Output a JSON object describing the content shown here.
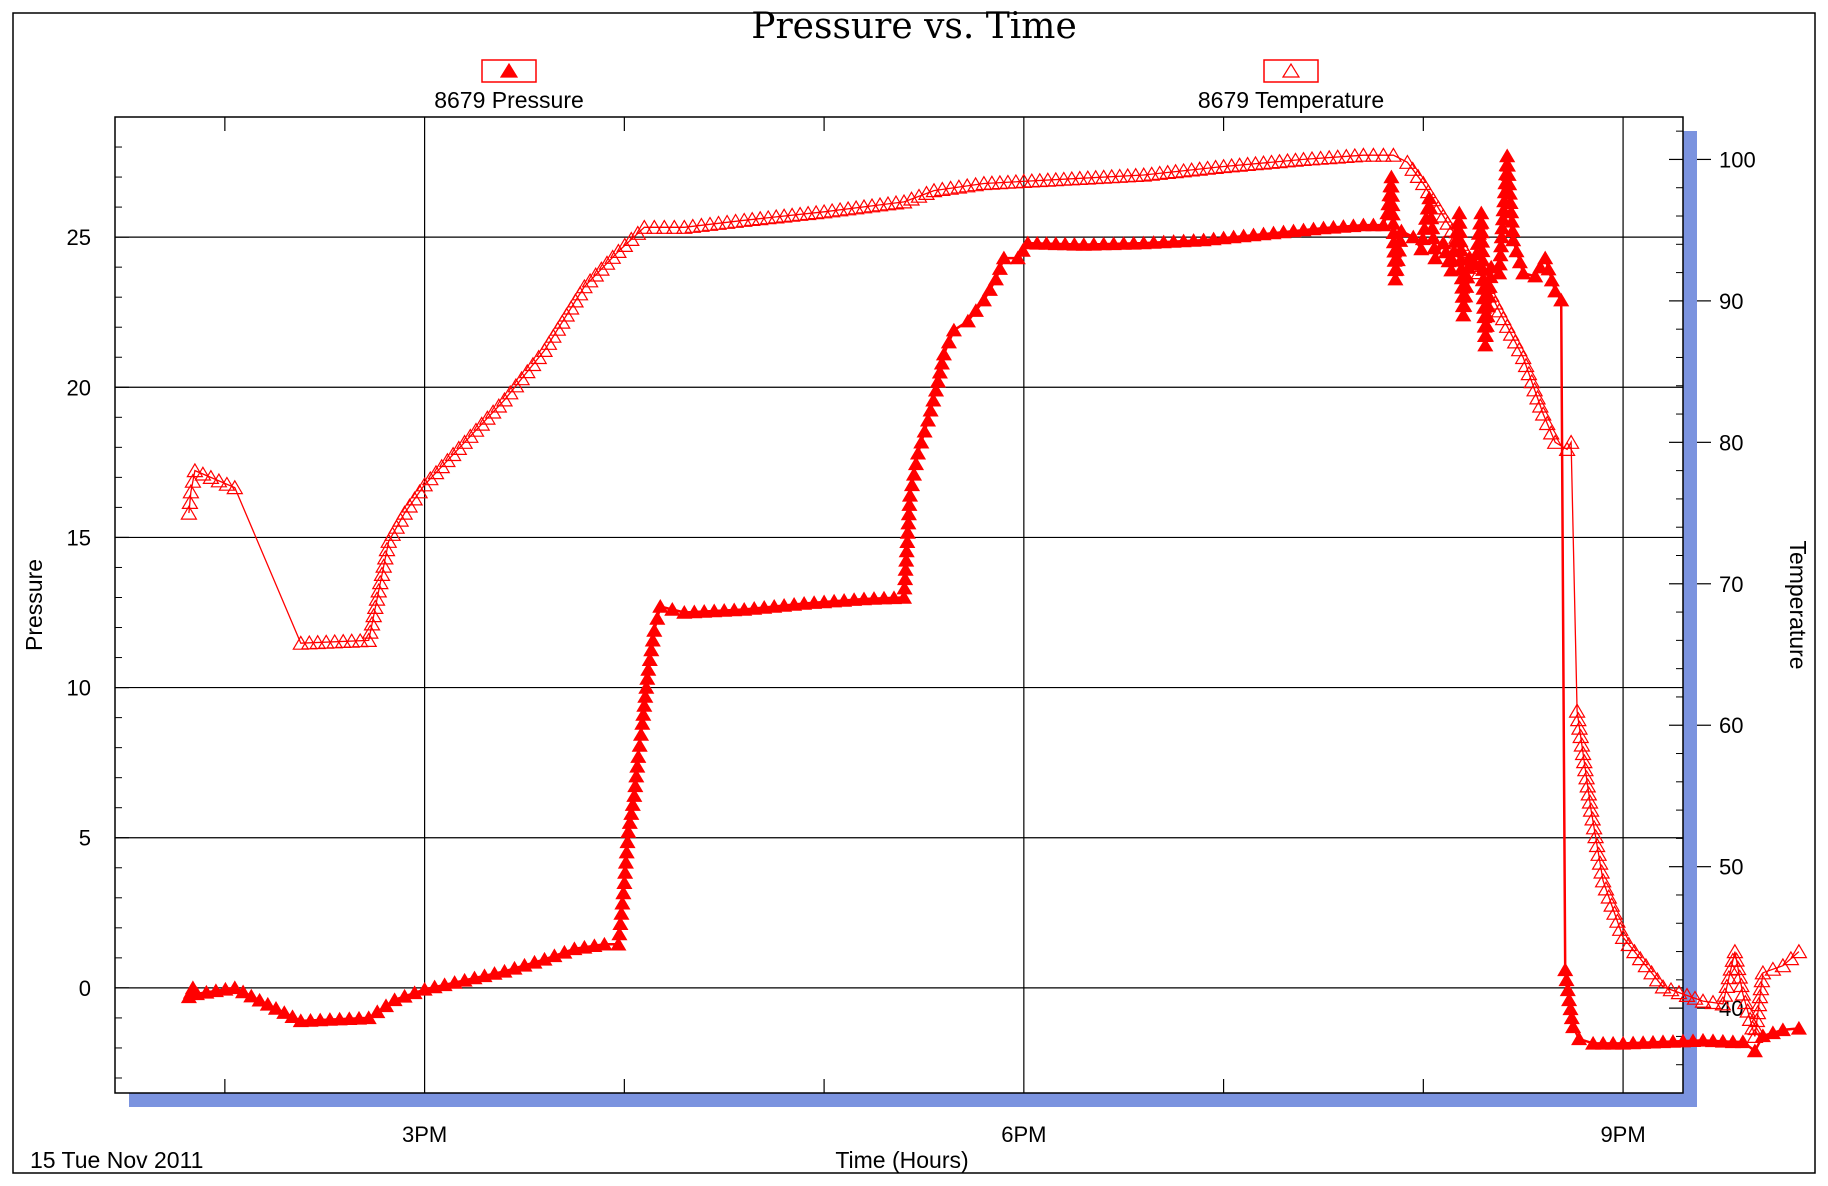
{
  "chart_data": {
    "type": "line",
    "title": "Pressure vs. Time",
    "xlabel": "Time (Hours)",
    "ylabel": "Pressure",
    "y2label": "Temperature",
    "date_label": "15 Tue Nov 2011",
    "x_unit": "hours of day (24h)",
    "xlim": [
      13.45,
      21.3
    ],
    "ylim": [
      -3.5,
      29
    ],
    "y2lim": [
      34,
      103
    ],
    "x_ticks": [
      15,
      18,
      21
    ],
    "x_tick_labels": [
      "3PM",
      "6PM",
      "9PM"
    ],
    "y_ticks": [
      0,
      5,
      10,
      15,
      20,
      25
    ],
    "y2_ticks": [
      40,
      50,
      60,
      70,
      80,
      90,
      100
    ],
    "grid": true,
    "legend_position": "top",
    "colors": {
      "series": "#ff0000",
      "frame": "#000000",
      "shadow": "#7b93df",
      "grid": "#000000"
    },
    "series": [
      {
        "name": "8679 Pressure",
        "marker": "filled-triangle",
        "axis": "left",
        "points": [
          [
            13.82,
            -0.3
          ],
          [
            13.83,
            -0.15
          ],
          [
            13.84,
            0.0
          ],
          [
            13.86,
            -0.2
          ],
          [
            14.05,
            0.0
          ],
          [
            14.38,
            -1.1
          ],
          [
            14.72,
            -1.0
          ],
          [
            14.85,
            -0.4
          ],
          [
            15.0,
            -0.05
          ],
          [
            15.2,
            0.25
          ],
          [
            15.4,
            0.55
          ],
          [
            15.6,
            0.95
          ],
          [
            15.75,
            1.3
          ],
          [
            15.9,
            1.45
          ],
          [
            15.97,
            1.45
          ],
          [
            16.0,
            3.5
          ],
          [
            16.02,
            5.2
          ],
          [
            16.05,
            6.4
          ],
          [
            16.07,
            7.7
          ],
          [
            16.09,
            8.8
          ],
          [
            16.12,
            10.6
          ],
          [
            16.15,
            11.9
          ],
          [
            16.18,
            12.7
          ],
          [
            16.3,
            12.5
          ],
          [
            16.6,
            12.6
          ],
          [
            16.9,
            12.8
          ],
          [
            17.2,
            12.95
          ],
          [
            17.4,
            13.0
          ],
          [
            17.43,
            16.4
          ],
          [
            17.47,
            17.8
          ],
          [
            17.52,
            18.9
          ],
          [
            17.56,
            19.9
          ],
          [
            17.6,
            21.1
          ],
          [
            17.65,
            21.9
          ],
          [
            17.72,
            22.2
          ],
          [
            17.8,
            22.9
          ],
          [
            17.86,
            23.6
          ],
          [
            17.9,
            24.3
          ],
          [
            17.97,
            24.3
          ],
          [
            18.02,
            24.8
          ],
          [
            18.3,
            24.75
          ],
          [
            18.6,
            24.8
          ],
          [
            18.9,
            24.9
          ],
          [
            19.2,
            25.1
          ],
          [
            19.5,
            25.3
          ],
          [
            19.7,
            25.4
          ],
          [
            19.8,
            25.4
          ],
          [
            19.82,
            25.8
          ],
          [
            19.84,
            27.0
          ],
          [
            19.86,
            23.6
          ],
          [
            19.89,
            25.2
          ],
          [
            19.95,
            25.0
          ],
          [
            19.99,
            24.6
          ],
          [
            20.03,
            26.3
          ],
          [
            20.06,
            24.3
          ],
          [
            20.1,
            24.8
          ],
          [
            20.14,
            23.9
          ],
          [
            20.18,
            25.8
          ],
          [
            20.2,
            22.4
          ],
          [
            20.23,
            24.3
          ],
          [
            20.26,
            24.1
          ],
          [
            20.29,
            25.8
          ],
          [
            20.31,
            21.4
          ],
          [
            20.34,
            24.0
          ],
          [
            20.38,
            23.8
          ],
          [
            20.42,
            27.7
          ],
          [
            20.45,
            24.9
          ],
          [
            20.5,
            23.8
          ],
          [
            20.56,
            23.7
          ],
          [
            20.61,
            24.3
          ],
          [
            20.66,
            23.2
          ],
          [
            20.69,
            22.9
          ],
          [
            20.71,
            0.6
          ],
          [
            20.73,
            -0.4
          ],
          [
            20.75,
            -1.3
          ],
          [
            20.78,
            -1.7
          ],
          [
            20.85,
            -1.85
          ],
          [
            21.0,
            -1.85
          ],
          [
            21.2,
            -1.8
          ],
          [
            21.4,
            -1.75
          ],
          [
            21.55,
            -1.8
          ],
          [
            21.6,
            -1.8
          ],
          [
            21.66,
            -2.1
          ],
          [
            21.7,
            -1.6
          ],
          [
            21.8,
            -1.4
          ],
          [
            21.88,
            -1.35
          ]
        ]
      },
      {
        "name": "8679 Temperature",
        "marker": "open-triangle",
        "axis": "right",
        "points": [
          [
            13.82,
            75.0
          ],
          [
            13.83,
            76.5
          ],
          [
            13.85,
            78.0
          ],
          [
            14.05,
            76.8
          ],
          [
            14.38,
            65.8
          ],
          [
            14.72,
            66.0
          ],
          [
            14.82,
            73.0
          ],
          [
            14.9,
            75.0
          ],
          [
            15.0,
            77.0
          ],
          [
            15.2,
            80.0
          ],
          [
            15.4,
            83.0
          ],
          [
            15.6,
            86.5
          ],
          [
            15.8,
            91.0
          ],
          [
            15.97,
            93.5
          ],
          [
            16.1,
            95.2
          ],
          [
            16.3,
            95.2
          ],
          [
            16.6,
            95.7
          ],
          [
            17.0,
            96.3
          ],
          [
            17.4,
            97.0
          ],
          [
            17.55,
            97.8
          ],
          [
            17.8,
            98.3
          ],
          [
            18.2,
            98.6
          ],
          [
            18.6,
            98.9
          ],
          [
            19.0,
            99.5
          ],
          [
            19.4,
            100.0
          ],
          [
            19.7,
            100.3
          ],
          [
            19.85,
            100.3
          ],
          [
            19.92,
            99.8
          ],
          [
            20.0,
            98.3
          ],
          [
            20.1,
            96.0
          ],
          [
            20.3,
            91.5
          ],
          [
            20.5,
            86.0
          ],
          [
            20.6,
            82.0
          ],
          [
            20.66,
            80.0
          ],
          [
            20.72,
            79.5
          ],
          [
            20.74,
            80.0
          ],
          [
            20.77,
            61.0
          ],
          [
            20.8,
            58.0
          ],
          [
            20.84,
            54.0
          ],
          [
            20.9,
            49.0
          ],
          [
            21.0,
            45.0
          ],
          [
            21.2,
            41.5
          ],
          [
            21.4,
            40.5
          ],
          [
            21.5,
            40.3
          ],
          [
            21.56,
            44.0
          ],
          [
            21.6,
            41.0
          ],
          [
            21.66,
            38.0
          ],
          [
            21.7,
            42.5
          ],
          [
            21.8,
            43.0
          ],
          [
            21.88,
            44.0
          ]
        ]
      }
    ]
  }
}
